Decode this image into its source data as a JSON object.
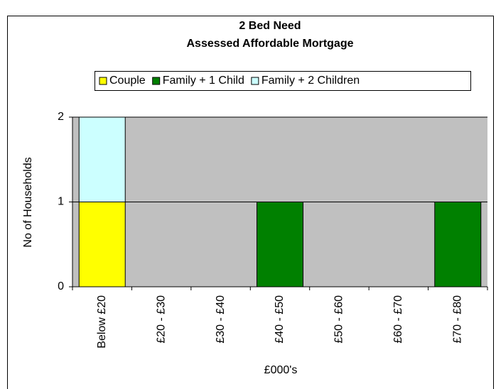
{
  "chart_data": {
    "type": "stacked_bar",
    "title": "2 Bed Need",
    "subtitle": "Assessed Affordable Mortgage",
    "categories": [
      "Below £20",
      "£20 - £30",
      "£30 - £40",
      "£40 - £50",
      "£50 - £60",
      "£60 - £70",
      "£70 - £80"
    ],
    "series": [
      {
        "name": "Couple",
        "color": "#ffff00",
        "values": [
          1,
          0,
          0,
          0,
          0,
          0,
          0
        ]
      },
      {
        "name": "Family + 1 Child",
        "color": "#008000",
        "values": [
          0,
          0,
          0,
          1,
          0,
          0,
          1
        ]
      },
      {
        "name": "Family + 2 Children",
        "color": "#ccffff",
        "values": [
          1,
          0,
          0,
          0,
          0,
          0,
          0
        ]
      }
    ],
    "xlabel": "£000's",
    "ylabel": "No of Households",
    "ylim": [
      0,
      2
    ],
    "yticks": [
      0,
      1,
      2
    ],
    "grid": true,
    "legend": "top",
    "plot_background": "#c0c0c0"
  }
}
